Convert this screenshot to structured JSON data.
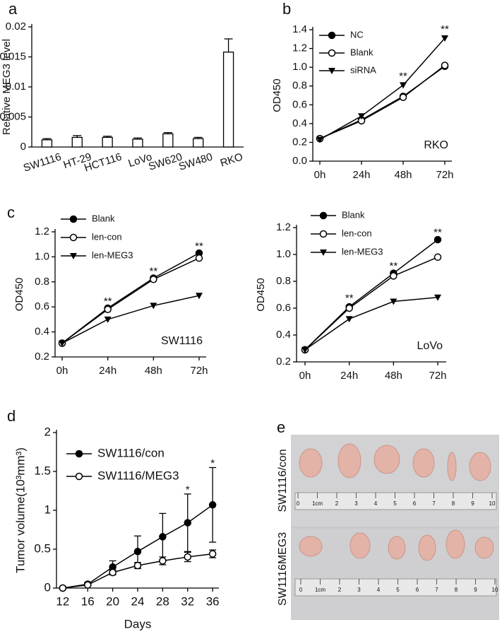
{
  "panel_labels": [
    "a",
    "b",
    "c",
    "d",
    "e"
  ],
  "chart_data": [
    {
      "type": "bar",
      "ylabel": "Relative MEG3 level",
      "categories": [
        "SW1116",
        "HT-29",
        "HCT116",
        "LoVo",
        "SW620",
        "SW480",
        "RKO"
      ],
      "values": [
        0.0012,
        0.0016,
        0.0016,
        0.0013,
        0.0022,
        0.0014,
        0.0158
      ],
      "errors": [
        0.0002,
        0.0003,
        0.0002,
        0.0002,
        0.0002,
        0.0002,
        0.0022
      ],
      "color": "#ffffff",
      "ylim": [
        0,
        0.02
      ],
      "yticks": [
        0,
        0.005,
        0.01,
        0.015,
        0.02
      ]
    },
    {
      "type": "line",
      "ylabel": "OD450",
      "inset_label": "RKO",
      "categories": [
        "0h",
        "24h",
        "48h",
        "72h"
      ],
      "series": [
        {
          "name": "NC",
          "color": "#000000",
          "marker": "circle-filled",
          "values": [
            0.24,
            0.44,
            0.69,
            1.01
          ]
        },
        {
          "name": "Blank",
          "color": "#000000",
          "marker": "circle-open",
          "values": [
            0.24,
            0.43,
            0.68,
            1.02
          ]
        },
        {
          "name": "siRNA",
          "color": "#000000",
          "marker": "triangle-down",
          "values": [
            0.23,
            0.48,
            0.81,
            1.31
          ]
        }
      ],
      "ylim": [
        0,
        1.4
      ],
      "yticks": [
        {
          "value": 0,
          "label": "0.0"
        },
        {
          "value": 0.2,
          "label": "0.2"
        },
        {
          "value": 0.4,
          "label": "0.4"
        },
        {
          "value": 0.6,
          "label": "0.6"
        },
        {
          "value": 0.8,
          "label": "0.8"
        },
        {
          "value": 1,
          "label": "1.0"
        },
        {
          "value": 1.2,
          "label": "1.2"
        },
        {
          "value": 1.4,
          "label": "1.4"
        }
      ],
      "annotations": [
        {
          "text": "**",
          "x": "48h",
          "y": 0.9
        },
        {
          "text": "**",
          "x": "72h",
          "y": 1.4
        }
      ]
    },
    {
      "type": "line",
      "ylabel": "OD450",
      "inset_label": "SW1116",
      "categories": [
        "0h",
        "24h",
        "48h",
        "72h"
      ],
      "series": [
        {
          "name": "Blank",
          "color": "#000000",
          "marker": "circle-filled",
          "values": [
            0.31,
            0.59,
            0.83,
            1.03
          ]
        },
        {
          "name": "len-con",
          "color": "#000000",
          "marker": "circle-open",
          "values": [
            0.31,
            0.58,
            0.82,
            0.99
          ]
        },
        {
          "name": "len-MEG3",
          "color": "#000000",
          "marker": "triangle-down",
          "values": [
            0.31,
            0.5,
            0.61,
            0.69
          ]
        }
      ],
      "ylim": [
        0.2,
        1.2
      ],
      "yticks": [
        {
          "value": 0.2,
          "label": "0.2"
        },
        {
          "value": 0.4,
          "label": "0.4"
        },
        {
          "value": 0.6,
          "label": "0.6"
        },
        {
          "value": 0.8,
          "label": "0.8"
        },
        {
          "value": 1,
          "label": "1.0"
        },
        {
          "value": 1.2,
          "label": "1.2"
        }
      ],
      "annotations": [
        {
          "text": "**",
          "x": "24h",
          "y": 0.64
        },
        {
          "text": "**",
          "x": "48h",
          "y": 0.88
        },
        {
          "text": "**",
          "x": "72h",
          "y": 1.08
        }
      ]
    },
    {
      "type": "line",
      "ylabel": "OD450",
      "inset_label": "LoVo",
      "categories": [
        "0h",
        "24h",
        "48h",
        "72h"
      ],
      "series": [
        {
          "name": "Blank",
          "color": "#000000",
          "marker": "circle-filled",
          "values": [
            0.29,
            0.61,
            0.86,
            1.11
          ]
        },
        {
          "name": "len-con",
          "color": "#000000",
          "marker": "circle-open",
          "values": [
            0.29,
            0.6,
            0.84,
            0.98
          ]
        },
        {
          "name": "len-MEG3",
          "color": "#000000",
          "marker": "triangle-down",
          "values": [
            0.29,
            0.52,
            0.65,
            0.68
          ]
        }
      ],
      "ylim": [
        0.2,
        1.2
      ],
      "yticks": [
        {
          "value": 0.2,
          "label": "0.2"
        },
        {
          "value": 0.4,
          "label": "0.4"
        },
        {
          "value": 0.6,
          "label": "0.6"
        },
        {
          "value": 0.8,
          "label": "0.8"
        },
        {
          "value": 1,
          "label": "1.0"
        },
        {
          "value": 1.2,
          "label": "1.2"
        }
      ],
      "annotations": [
        {
          "text": "**",
          "x": "24h",
          "y": 0.67
        },
        {
          "text": "**",
          "x": "48h",
          "y": 0.91
        },
        {
          "text": "**",
          "x": "72h",
          "y": 1.16
        }
      ]
    },
    {
      "type": "line",
      "ylabel": "Tumor volume(10³mm³)",
      "xlabel": "Days",
      "x": [
        12,
        16,
        20,
        24,
        28,
        32,
        36
      ],
      "series": [
        {
          "name": "SW1116/con",
          "color": "#000000",
          "marker": "circle-filled",
          "values": [
            0,
            0.05,
            0.27,
            0.47,
            0.66,
            0.84,
            1.07
          ],
          "errors": [
            0,
            0.02,
            0.08,
            0.2,
            0.3,
            0.37,
            0.48
          ]
        },
        {
          "name": "SW1116/MEG3",
          "color": "#000000",
          "marker": "circle-open",
          "values": [
            0,
            0.04,
            0.2,
            0.29,
            0.35,
            0.4,
            0.44
          ],
          "errors": [
            0,
            0.01,
            0.03,
            0.04,
            0.05,
            0.06,
            0.05
          ]
        }
      ],
      "xlim": [
        11,
        37
      ],
      "xticks": [
        12,
        16,
        20,
        24,
        28,
        32,
        36
      ],
      "ylim": [
        0,
        2
      ],
      "yticks": [
        0,
        0.5,
        1,
        1.5,
        2
      ],
      "annotations": [
        {
          "text": "*",
          "x": 32,
          "y": 1.26
        },
        {
          "text": "*",
          "x": 36,
          "y": 1.6
        }
      ]
    }
  ],
  "photo": {
    "row_labels": [
      "SW1116/con",
      "SW1116MEG3"
    ],
    "ruler_labels": [
      "0",
      "1cm",
      "2",
      "3",
      "4",
      "5",
      "6",
      "7",
      "8",
      "9",
      "10"
    ]
  }
}
